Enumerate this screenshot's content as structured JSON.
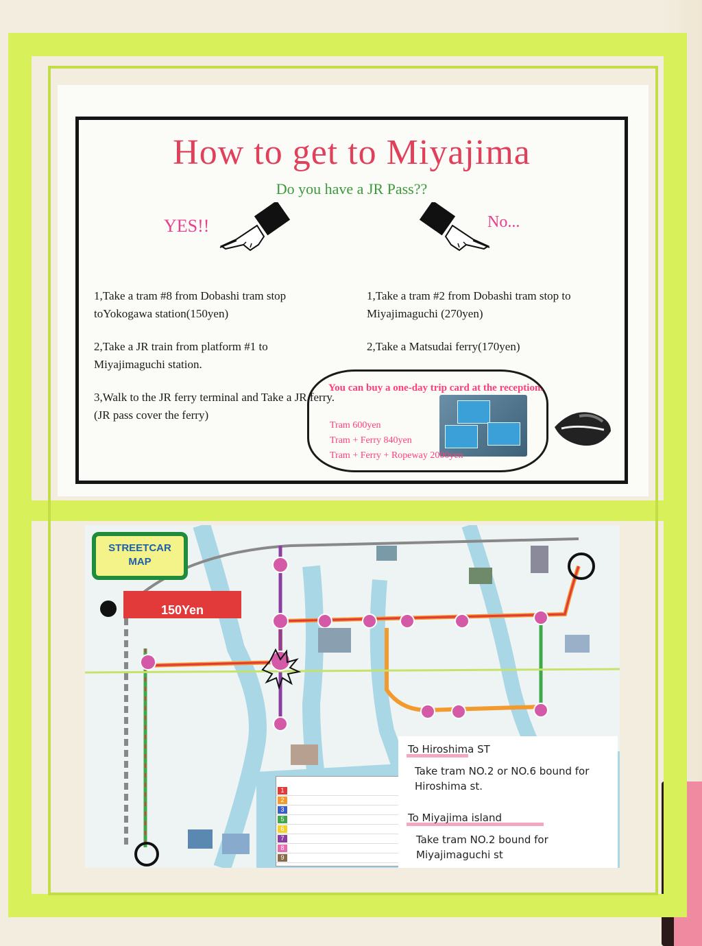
{
  "poster": {
    "title": "How to get to Miyajima",
    "question": "Do you have a JR Pass??",
    "yes_label": "YES!!",
    "no_label": "No...",
    "yes_steps": [
      "1,Take a tram #8 from Dobashi tram stop toYokogawa station(150yen)",
      "2,Take a JR train from platform #1 to Miyajimaguchi station.",
      "3,Walk to the JR ferry terminal and Take a JR ferry. (JR pass cover the ferry)"
    ],
    "no_steps": [
      "1,Take a tram #2 from Dobashi tram stop to Miyajimaguchi (270yen)",
      "2,Take a Matsudai ferry(170yen)"
    ],
    "bubble": {
      "heading": "You can buy a one-day trip card at the reception.",
      "prices": [
        "Tram 600yen",
        "Tram + Ferry 840yen",
        "Tram + Ferry + Ropeway 2000yen"
      ]
    }
  },
  "map": {
    "badge_line1": "STREETCAR",
    "badge_line2": "MAP",
    "price_tag": "150Yen",
    "colors": {
      "line_red": "#e23a3a",
      "line_orange": "#f29a2e",
      "line_green": "#3ea84a",
      "line_purple": "#8a3fa0",
      "station_pink": "#d45aa8",
      "river": "#a9d7e6"
    },
    "route_colors": [
      "#e23a3a",
      "#f29a2e",
      "#3b5fc8",
      "#3ea84a",
      "#f2d02e",
      "#8a3fa0",
      "#e86ab0",
      "#8a6a4a"
    ],
    "route_numbers": [
      "1",
      "2",
      "3",
      "5",
      "6",
      "7",
      "8",
      "9"
    ]
  },
  "note": {
    "heading1": "To Hiroshima ST",
    "text1": "Take tram NO.2 or NO.6 bound for Hiroshima st.",
    "heading2": "To Miyajima island",
    "text2": "Take tram NO.2 bound for Miyajimaguchi st"
  }
}
